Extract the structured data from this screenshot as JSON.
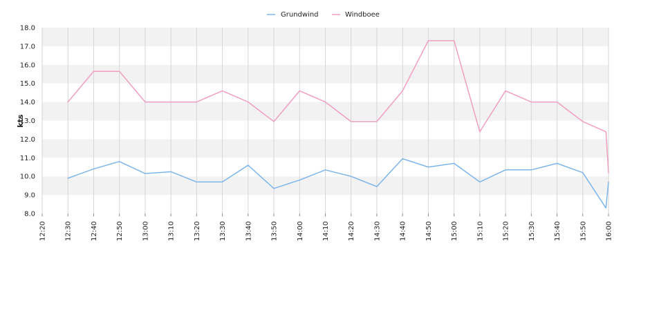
{
  "chart_data": {
    "type": "line",
    "title": "",
    "xlabel": "",
    "ylabel": "kts",
    "ylim": [
      8.0,
      18.0
    ],
    "yticks": [
      "8.0",
      "9.0",
      "10.0",
      "11.0",
      "12.0",
      "13.0",
      "14.0",
      "15.0",
      "16.0",
      "17.0",
      "18.0"
    ],
    "xlim": [
      "12:20",
      "16:00"
    ],
    "xticks": [
      "12:20",
      "12:30",
      "12:40",
      "12:50",
      "13:00",
      "13:10",
      "13:20",
      "13:30",
      "13:40",
      "13:50",
      "14:00",
      "14:10",
      "14:20",
      "14:30",
      "14:40",
      "14:50",
      "15:00",
      "15:10",
      "15:20",
      "15:30",
      "15:40",
      "15:50",
      "16:00"
    ],
    "grid": true,
    "legend_position": "top-center",
    "series": [
      {
        "name": "Grundwind",
        "color": "#7cb5ec",
        "points": [
          [
            "12:30",
            9.9
          ],
          [
            "12:40",
            10.4
          ],
          [
            "12:50",
            10.8
          ],
          [
            "13:00",
            10.15
          ],
          [
            "13:10",
            10.25
          ],
          [
            "13:20",
            9.7
          ],
          [
            "13:30",
            9.7
          ],
          [
            "13:40",
            10.6
          ],
          [
            "13:50",
            9.35
          ],
          [
            "14:00",
            9.8
          ],
          [
            "14:10",
            10.35
          ],
          [
            "14:20",
            10.0
          ],
          [
            "14:30",
            9.45
          ],
          [
            "14:40",
            10.95
          ],
          [
            "14:50",
            10.5
          ],
          [
            "15:00",
            10.7
          ],
          [
            "15:10",
            9.7
          ],
          [
            "15:20",
            10.35
          ],
          [
            "15:30",
            10.35
          ],
          [
            "15:40",
            10.7
          ],
          [
            "15:50",
            10.2
          ],
          [
            "15:59",
            8.3
          ],
          [
            "16:00",
            9.7
          ]
        ]
      },
      {
        "name": "Windboee",
        "color": "#f19ec2",
        "points": [
          [
            "12:30",
            14.0
          ],
          [
            "12:40",
            15.65
          ],
          [
            "12:50",
            15.65
          ],
          [
            "13:00",
            14.0
          ],
          [
            "13:10",
            14.0
          ],
          [
            "13:20",
            14.0
          ],
          [
            "13:30",
            14.6
          ],
          [
            "13:40",
            14.0
          ],
          [
            "13:50",
            12.95
          ],
          [
            "14:00",
            14.6
          ],
          [
            "14:10",
            14.0
          ],
          [
            "14:20",
            12.95
          ],
          [
            "14:30",
            12.95
          ],
          [
            "14:40",
            14.6
          ],
          [
            "14:50",
            17.3
          ],
          [
            "15:00",
            17.3
          ],
          [
            "15:10",
            12.4
          ],
          [
            "15:20",
            14.6
          ],
          [
            "15:30",
            14.0
          ],
          [
            "15:40",
            14.0
          ],
          [
            "15:50",
            12.95
          ],
          [
            "15:59",
            12.4
          ],
          [
            "16:00",
            10.2
          ]
        ]
      }
    ]
  }
}
